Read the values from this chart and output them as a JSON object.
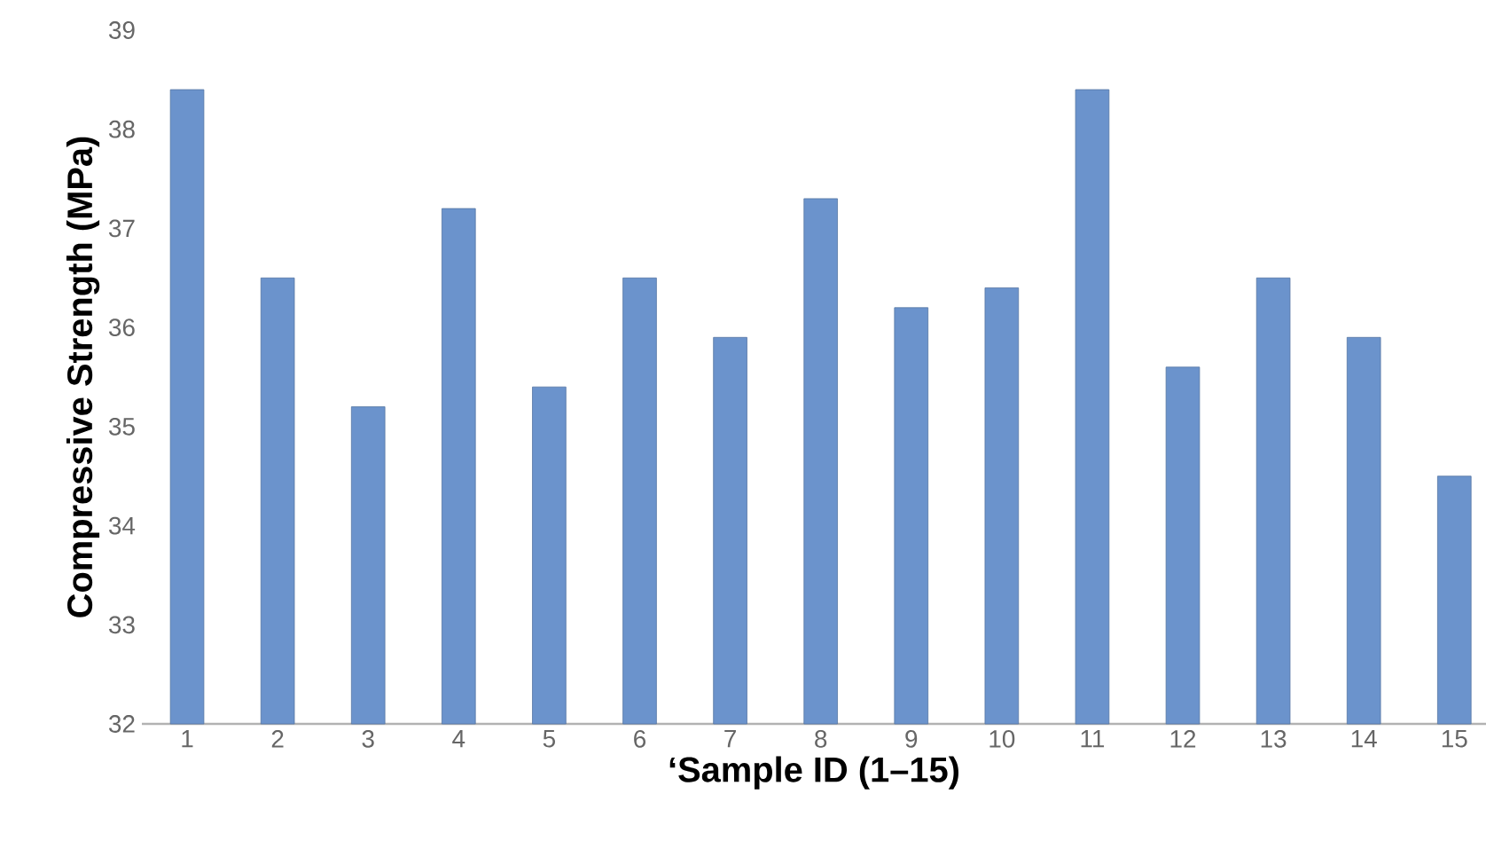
{
  "chart_data": {
    "type": "bar",
    "xlabel": "‘Sample ID (1–15)",
    "ylabel": "Compressive Strength (MPa)",
    "categories": [
      "1",
      "2",
      "3",
      "4",
      "5",
      "6",
      "7",
      "8",
      "9",
      "10",
      "11",
      "12",
      "13",
      "14",
      "15"
    ],
    "values": [
      38.4,
      36.5,
      35.2,
      37.2,
      35.4,
      36.5,
      35.9,
      37.3,
      36.2,
      36.4,
      38.4,
      35.6,
      36.5,
      35.9,
      34.5
    ],
    "color": "#6b93cc",
    "ylim": [
      32,
      39
    ],
    "yticks": [
      32,
      33,
      34,
      35,
      36,
      37,
      38,
      39
    ]
  }
}
